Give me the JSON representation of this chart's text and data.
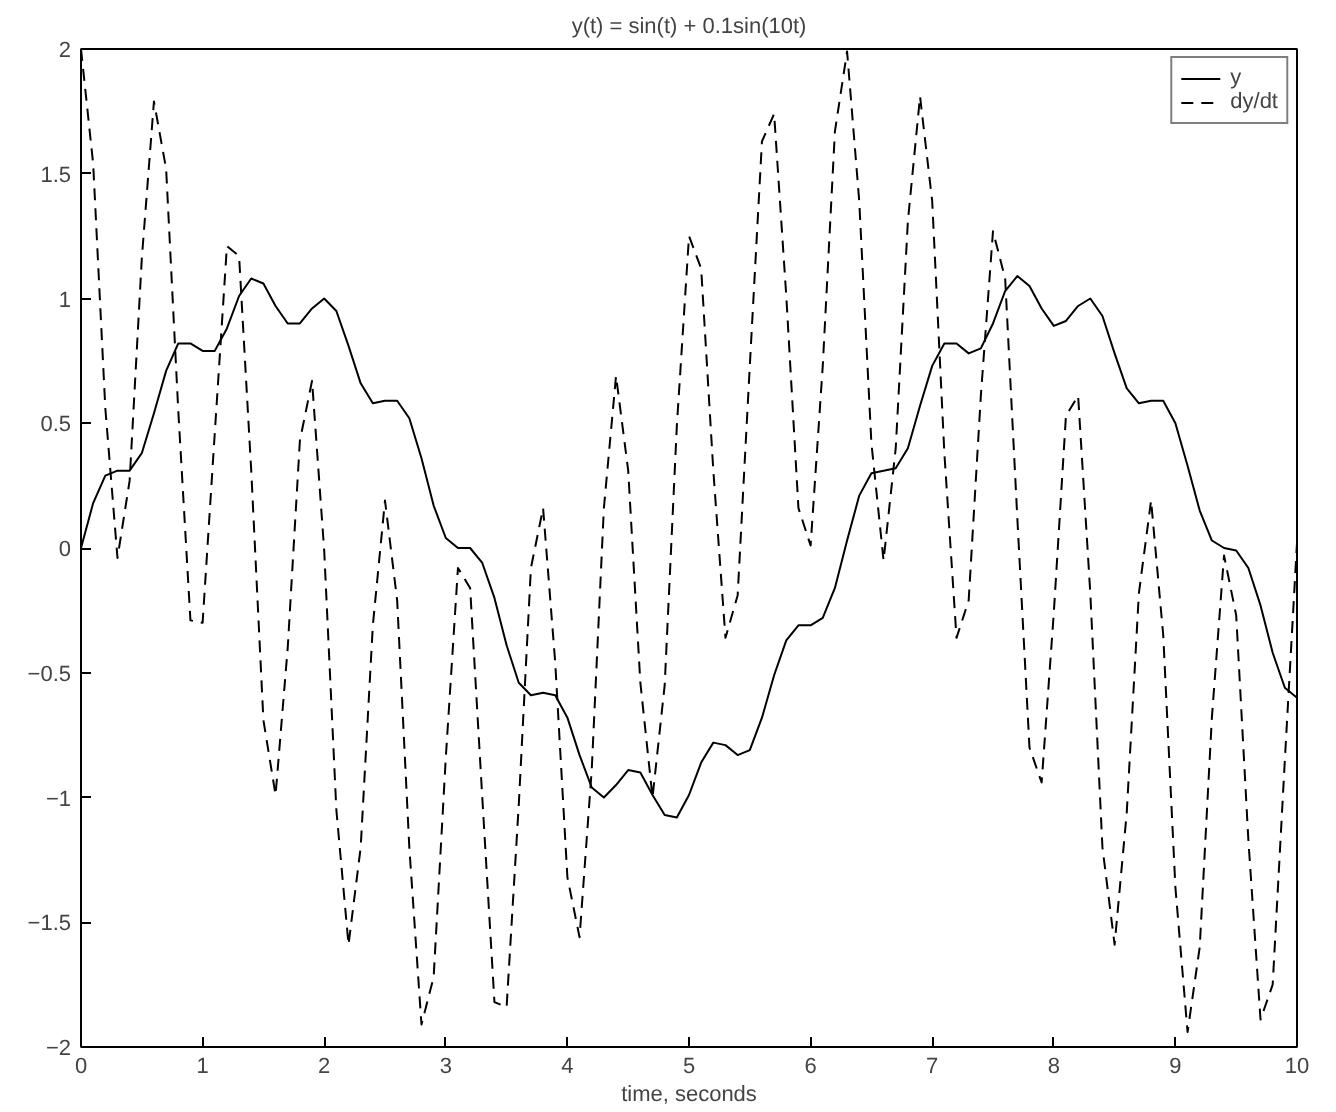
{
  "chart_data": {
    "type": "line",
    "title": "y(t) = sin(t) + 0.1sin(10t)",
    "xlabel": "time, seconds",
    "x": [
      0,
      0.1,
      0.2,
      0.3,
      0.4,
      0.5,
      0.6,
      0.7,
      0.8,
      0.9,
      1,
      1.1,
      1.2,
      1.3,
      1.4,
      1.5,
      1.6,
      1.7,
      1.8,
      1.9,
      2,
      2.1,
      2.2,
      2.3,
      2.4,
      2.5,
      2.6,
      2.7,
      2.8,
      2.9,
      3,
      3.1,
      3.2,
      3.3,
      3.4,
      3.5,
      3.6,
      3.7,
      3.8,
      3.9,
      4,
      4.1,
      4.2,
      4.3,
      4.4,
      4.5,
      4.6,
      4.7,
      4.8,
      4.9,
      5,
      5.1,
      5.2,
      5.3,
      5.4,
      5.5,
      5.6,
      5.7,
      5.8,
      5.9,
      6,
      6.1,
      6.2,
      6.3,
      6.4,
      6.5,
      6.6,
      6.7,
      6.8,
      6.9,
      7,
      7.1,
      7.2,
      7.3,
      7.4,
      7.5,
      7.6,
      7.7,
      7.8,
      7.9,
      8,
      8.1,
      8.2,
      8.3,
      8.4,
      8.5,
      8.6,
      8.7,
      8.8,
      8.9,
      9,
      9.1,
      9.2,
      9.3,
      9.4,
      9.5,
      9.6,
      9.7,
      9.8,
      9.9,
      10
    ],
    "series": [
      {
        "name": "y",
        "color": "#000000",
        "line_style": "solid",
        "values": [
          0,
          0.18,
          0.29,
          0.31,
          0.31,
          0.38,
          0.54,
          0.71,
          0.82,
          0.82,
          0.79,
          0.79,
          0.88,
          1.01,
          1.08,
          1.06,
          0.97,
          0.9,
          0.9,
          0.96,
          1.0,
          0.95,
          0.81,
          0.66,
          0.58,
          0.59,
          0.59,
          0.52,
          0.36,
          0.17,
          0.04,
          0.0,
          0.0,
          -0.06,
          -0.2,
          -0.39,
          -0.54,
          -0.59,
          -0.58,
          -0.59,
          -0.68,
          -0.83,
          -0.96,
          -1.0,
          -0.95,
          -0.89,
          -0.9,
          -0.99,
          -1.07,
          -1.08,
          -0.99,
          -0.86,
          -0.78,
          -0.79,
          -0.83,
          -0.81,
          -0.68,
          -0.51,
          -0.37,
          -0.31,
          -0.31,
          -0.28,
          -0.16,
          0.03,
          0.21,
          0.3,
          0.31,
          0.32,
          0.4,
          0.57,
          0.73,
          0.82,
          0.82,
          0.78,
          0.8,
          0.9,
          1.03,
          1.09,
          1.05,
          0.96,
          0.89,
          0.91,
          0.97,
          1.0,
          0.93,
          0.78,
          0.64,
          0.58,
          0.59,
          0.59,
          0.5,
          0.33,
          0.15,
          0.03,
          0.0,
          -0.01,
          -0.08,
          -0.23,
          -0.42,
          -0.56,
          -0.6
        ]
      },
      {
        "name": "dy/dt",
        "color": "#000000",
        "line_style": "dashed",
        "values": [
          2.0,
          1.54,
          0.56,
          -0.04,
          0.27,
          1.16,
          1.79,
          1.52,
          0.55,
          -0.29,
          -0.3,
          0.46,
          1.21,
          1.17,
          0.31,
          -0.69,
          -0.99,
          -0.4,
          0.43,
          0.67,
          -0.01,
          -1.05,
          -1.59,
          -1.2,
          -0.31,
          0.19,
          -0.21,
          -1.2,
          -1.91,
          -1.72,
          -0.84,
          -0.08,
          -0.16,
          -1.0,
          -1.82,
          -1.84,
          -1.03,
          -0.08,
          0.16,
          -0.46,
          -1.32,
          -1.56,
          -0.89,
          0.16,
          0.69,
          0.31,
          -0.54,
          -1.0,
          -0.55,
          0.49,
          1.25,
          1.12,
          0.31,
          -0.36,
          -0.19,
          0.73,
          1.63,
          1.74,
          1.01,
          0.16,
          0.01,
          0.73,
          1.67,
          1.99,
          1.39,
          0.42,
          -0.05,
          0.4,
          1.31,
          1.81,
          1.39,
          0.38,
          -0.36,
          -0.21,
          0.61,
          1.27,
          1.08,
          0.12,
          -0.8,
          -0.94,
          -0.26,
          0.53,
          0.61,
          -0.18,
          -1.2,
          -1.59,
          -1.06,
          -0.18,
          0.19,
          -0.35,
          -1.36,
          -1.94,
          -1.6,
          -0.68,
          -0.03,
          -0.27,
          -1.17,
          -1.89,
          -1.75,
          -0.85,
          0.02
        ]
      }
    ],
    "xlim": [
      0,
      10
    ],
    "ylim": [
      -2,
      2
    ],
    "xticks": [
      0,
      1,
      2,
      3,
      4,
      5,
      6,
      7,
      8,
      9,
      10
    ],
    "yticks": [
      -2,
      -1.5,
      -1,
      -0.5,
      0,
      0.5,
      1,
      1.5,
      2
    ],
    "grid": false,
    "legend": "top right",
    "marker": "none"
  }
}
